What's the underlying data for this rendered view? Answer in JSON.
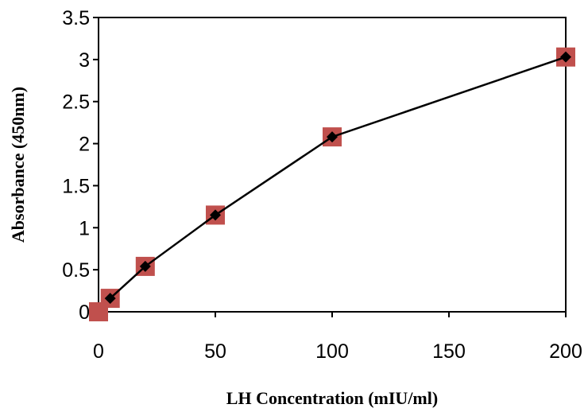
{
  "chart_data": {
    "type": "scatter",
    "title": "",
    "xlabel": "LH Concentration (mIU/ml)",
    "ylabel": "Absorbance (450nm)",
    "xlim": [
      0,
      200
    ],
    "ylim": [
      0,
      3.5
    ],
    "x_ticks": [
      "0",
      "50",
      "100",
      "150",
      "200"
    ],
    "y_ticks": [
      "0",
      "0.5",
      "1",
      "1.5",
      "2",
      "2.5",
      "3",
      "3.5"
    ],
    "grid": false,
    "legend": "none",
    "series": [
      {
        "marker": "square",
        "color": "#c0504d",
        "x": [
          0,
          5,
          20,
          50,
          100,
          200
        ],
        "y": [
          0.0,
          0.16,
          0.54,
          1.15,
          2.08,
          3.03
        ]
      },
      {
        "marker": "diamond-line",
        "color": "#000000",
        "x": [
          5,
          20,
          50,
          100,
          200
        ],
        "y": [
          0.16,
          0.54,
          1.15,
          2.08,
          3.03
        ]
      }
    ]
  }
}
